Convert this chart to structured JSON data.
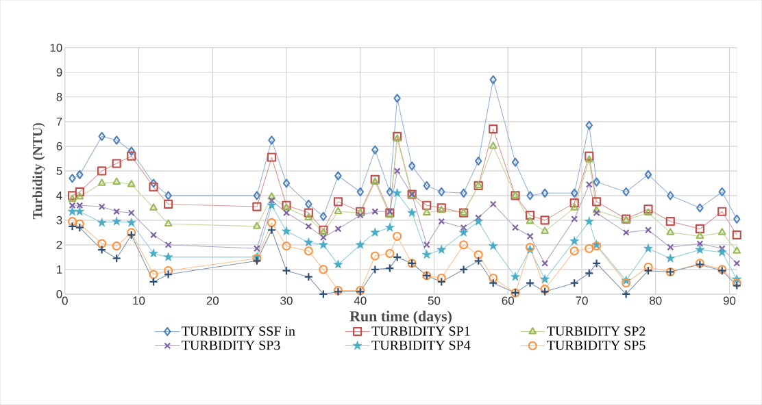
{
  "chart_data": {
    "type": "line",
    "xlabel": "Run time (days)",
    "ylabel": "Turbidity  (NTU)",
    "x": [
      1,
      2,
      5,
      7,
      9,
      12,
      14,
      26,
      28,
      30,
      33,
      35,
      37,
      40,
      42,
      44,
      45,
      47,
      49,
      51,
      54,
      56,
      58,
      61,
      63,
      65,
      69,
      71,
      72,
      76,
      79,
      82,
      86,
      89,
      91
    ],
    "xlim": [
      0,
      91
    ],
    "xticks": [
      0,
      10,
      20,
      30,
      40,
      50,
      60,
      70,
      80,
      90
    ],
    "ylim": [
      0,
      10
    ],
    "yticks": [
      0,
      1,
      2,
      3,
      4,
      5,
      6,
      7,
      8,
      9,
      10
    ],
    "grid": true,
    "legend": "bottom",
    "series": [
      {
        "name": "TURBIDITY SSF in",
        "color": "#4f81bd",
        "marker": "diamond",
        "values": [
          4.7,
          4.85,
          6.4,
          6.25,
          5.8,
          4.5,
          4.0,
          4.0,
          6.25,
          4.5,
          3.65,
          3.15,
          4.8,
          4.15,
          5.85,
          4.15,
          7.95,
          5.2,
          4.4,
          4.15,
          4.1,
          5.4,
          8.7,
          5.35,
          4.0,
          4.1,
          4.1,
          6.85,
          4.55,
          4.15,
          4.85,
          4.0,
          3.5,
          4.15,
          3.05
        ]
      },
      {
        "name": "TURBIDITY SP1",
        "color": "#c0504d",
        "marker": "square",
        "values": [
          4.0,
          4.15,
          5.0,
          5.3,
          5.6,
          4.35,
          3.65,
          3.55,
          5.55,
          3.6,
          3.3,
          2.6,
          3.75,
          3.35,
          4.65,
          3.3,
          6.4,
          4.05,
          3.6,
          3.5,
          3.3,
          4.4,
          6.7,
          4.0,
          3.2,
          3.0,
          3.7,
          5.6,
          3.75,
          3.05,
          3.45,
          2.95,
          2.65,
          3.35,
          2.4
        ]
      },
      {
        "name": "TURBIDITY SP2",
        "color": "#9bbb59",
        "marker": "triangle",
        "values": [
          3.85,
          3.95,
          4.5,
          4.55,
          4.45,
          3.5,
          2.85,
          2.75,
          3.95,
          3.5,
          3.1,
          2.5,
          3.35,
          3.3,
          4.55,
          3.2,
          6.3,
          4.0,
          3.3,
          3.4,
          3.3,
          4.4,
          6.0,
          4.0,
          2.95,
          2.55,
          3.5,
          5.45,
          3.4,
          3.0,
          3.3,
          2.5,
          2.35,
          2.5,
          1.75
        ]
      },
      {
        "name": "TURBIDITY SP3",
        "color": "#8064a2",
        "marker": "cross",
        "values": [
          3.6,
          3.6,
          3.55,
          3.35,
          3.3,
          2.4,
          2.0,
          1.85,
          3.8,
          3.3,
          2.75,
          2.3,
          2.65,
          3.2,
          3.35,
          3.35,
          5.0,
          4.05,
          2.0,
          2.95,
          2.7,
          3.1,
          3.65,
          2.7,
          2.35,
          1.25,
          3.05,
          4.45,
          3.3,
          2.5,
          2.6,
          1.9,
          2.05,
          1.85,
          1.25
        ]
      },
      {
        "name": "TURBIDITY SP4",
        "color": "#4bacc6",
        "marker": "star",
        "values": [
          3.35,
          3.35,
          2.9,
          2.95,
          2.9,
          1.65,
          1.5,
          1.5,
          3.6,
          2.55,
          2.1,
          2.0,
          1.2,
          2.0,
          2.5,
          2.7,
          4.1,
          3.3,
          1.6,
          1.8,
          2.5,
          2.95,
          1.95,
          0.7,
          1.8,
          0.6,
          2.15,
          2.95,
          2.0,
          0.55,
          1.85,
          1.45,
          1.8,
          1.7,
          0.6
        ]
      },
      {
        "name": "TURBIDITY SP5",
        "color": "#f79646",
        "marker": "circle",
        "values": [
          2.95,
          2.85,
          2.05,
          1.95,
          2.5,
          0.8,
          0.95,
          1.45,
          2.9,
          1.95,
          1.75,
          1.0,
          0.15,
          0.15,
          1.55,
          1.65,
          2.35,
          1.25,
          0.75,
          0.65,
          2.0,
          1.6,
          0.65,
          0.05,
          1.9,
          0.2,
          1.75,
          1.85,
          1.95,
          0.45,
          1.1,
          0.9,
          1.25,
          1.0,
          0.45
        ]
      },
      {
        "color": "#2c4d75",
        "marker": "plus",
        "values": [
          2.75,
          2.7,
          1.8,
          1.45,
          2.4,
          0.5,
          0.8,
          1.35,
          2.6,
          0.95,
          0.7,
          0.0,
          0.1,
          0.1,
          1.0,
          1.05,
          1.5,
          1.25,
          0.75,
          0.5,
          1.0,
          1.35,
          0.45,
          0.05,
          0.45,
          0.1,
          0.45,
          0.85,
          1.25,
          0.0,
          0.95,
          0.9,
          1.2,
          0.95,
          0.35
        ]
      }
    ]
  }
}
